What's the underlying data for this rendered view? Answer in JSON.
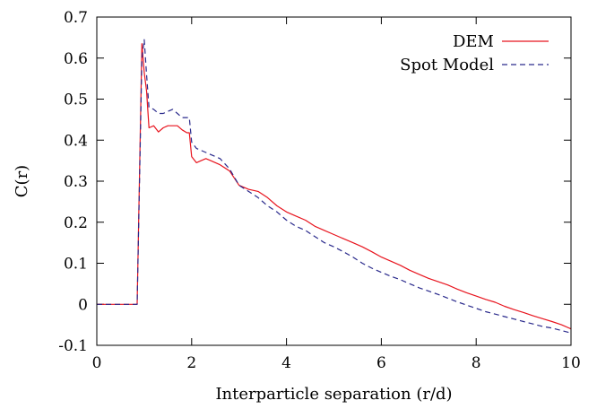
{
  "chart_data": {
    "type": "line",
    "xlabel": "Interparticle separation (r/d)",
    "ylabel": "C(r)",
    "xlim": [
      0,
      10
    ],
    "ylim": [
      -0.1,
      0.7
    ],
    "x_ticks": [
      "0",
      "2",
      "4",
      "6",
      "8",
      "10"
    ],
    "y_ticks": [
      "-0.1",
      "0",
      "0.1",
      "0.2",
      "0.3",
      "0.4",
      "0.5",
      "0.6",
      "0.7"
    ],
    "grid": false,
    "legend_position": "top-right",
    "series": [
      {
        "name": "DEM",
        "color": "#e8141e",
        "style": "solid",
        "x": [
          0,
          0.85,
          0.95,
          1.0,
          1.05,
          1.1,
          1.2,
          1.3,
          1.4,
          1.5,
          1.6,
          1.7,
          1.8,
          1.9,
          1.95,
          2.0,
          2.1,
          2.2,
          2.3,
          2.4,
          2.6,
          2.8,
          3.0,
          3.2,
          3.4,
          3.6,
          3.8,
          4.0,
          4.2,
          4.4,
          4.6,
          4.8,
          5.0,
          5.2,
          5.4,
          5.6,
          5.8,
          6.0,
          6.2,
          6.4,
          6.6,
          6.8,
          7.0,
          7.2,
          7.4,
          7.6,
          7.8,
          8.0,
          8.2,
          8.4,
          8.6,
          8.8,
          9.0,
          9.2,
          9.4,
          9.6,
          9.8,
          10.0
        ],
        "y": [
          0,
          0,
          0.635,
          0.565,
          0.52,
          0.43,
          0.435,
          0.42,
          0.43,
          0.435,
          0.435,
          0.435,
          0.425,
          0.418,
          0.418,
          0.36,
          0.345,
          0.35,
          0.355,
          0.35,
          0.34,
          0.325,
          0.29,
          0.28,
          0.275,
          0.26,
          0.24,
          0.225,
          0.215,
          0.205,
          0.19,
          0.18,
          0.17,
          0.16,
          0.15,
          0.14,
          0.128,
          0.115,
          0.105,
          0.095,
          0.083,
          0.073,
          0.063,
          0.055,
          0.047,
          0.037,
          0.028,
          0.02,
          0.012,
          0.005,
          -0.005,
          -0.013,
          -0.02,
          -0.028,
          -0.035,
          -0.042,
          -0.05,
          -0.06
        ]
      },
      {
        "name": "Spot Model",
        "color": "#2a2a8c",
        "style": "dashed",
        "x": [
          0,
          0.85,
          0.95,
          1.0,
          1.05,
          1.1,
          1.2,
          1.3,
          1.4,
          1.5,
          1.6,
          1.7,
          1.8,
          1.9,
          1.95,
          2.0,
          2.1,
          2.2,
          2.3,
          2.4,
          2.6,
          2.8,
          3.0,
          3.2,
          3.4,
          3.6,
          3.8,
          4.0,
          4.2,
          4.4,
          4.6,
          4.8,
          5.0,
          5.2,
          5.4,
          5.6,
          5.8,
          6.0,
          6.2,
          6.4,
          6.6,
          6.8,
          7.0,
          7.2,
          7.4,
          7.6,
          7.8,
          8.0,
          8.2,
          8.4,
          8.6,
          8.8,
          9.0,
          9.2,
          9.4,
          9.6,
          9.8,
          10.0
        ],
        "y": [
          0,
          0,
          0.6,
          0.645,
          0.56,
          0.48,
          0.475,
          0.465,
          0.465,
          0.47,
          0.475,
          0.465,
          0.455,
          0.455,
          0.455,
          0.395,
          0.38,
          0.375,
          0.37,
          0.365,
          0.355,
          0.33,
          0.29,
          0.275,
          0.26,
          0.24,
          0.225,
          0.205,
          0.19,
          0.18,
          0.165,
          0.15,
          0.14,
          0.128,
          0.115,
          0.1,
          0.088,
          0.078,
          0.068,
          0.06,
          0.05,
          0.04,
          0.032,
          0.024,
          0.015,
          0.006,
          -0.002,
          -0.01,
          -0.018,
          -0.024,
          -0.03,
          -0.036,
          -0.042,
          -0.048,
          -0.054,
          -0.058,
          -0.064,
          -0.07
        ]
      }
    ]
  }
}
